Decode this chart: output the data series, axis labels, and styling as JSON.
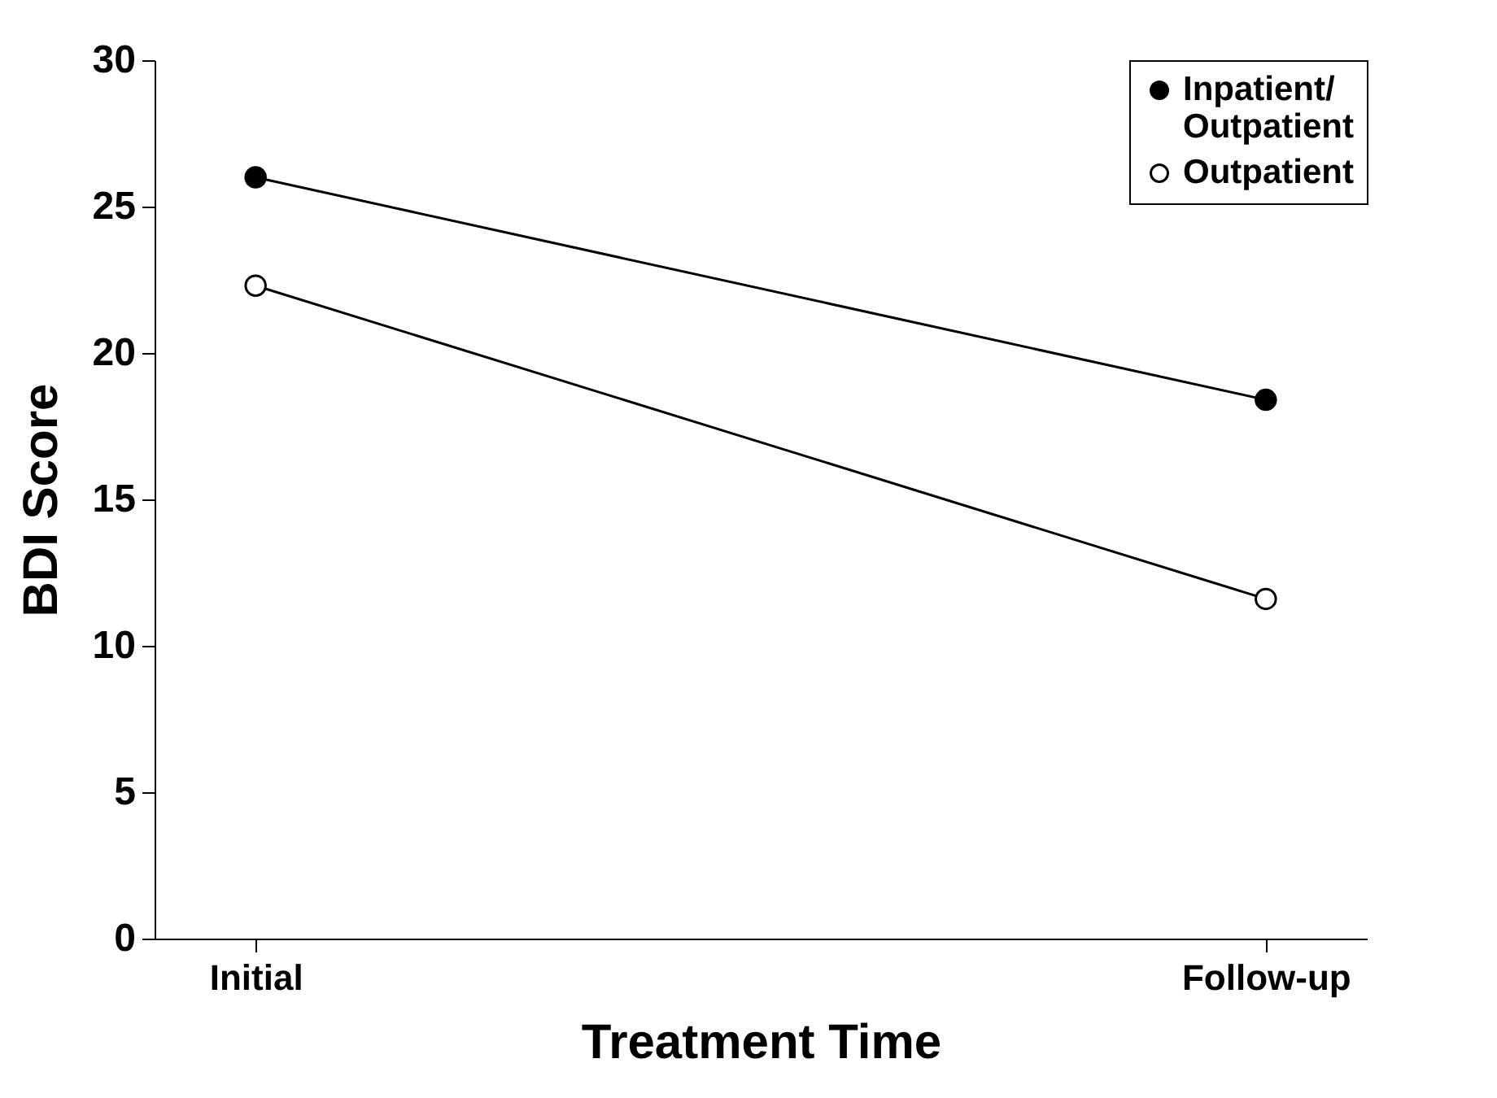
{
  "chart_data": {
    "type": "line",
    "xlabel": "Treatment Time",
    "ylabel": "BDI Score",
    "categories": [
      "Initial",
      "Follow-up"
    ],
    "series": [
      {
        "name": "Inpatient/Outpatient",
        "color": "#000000",
        "values": [
          26.0,
          18.4
        ]
      },
      {
        "name": "Outpatient",
        "color": "#000000",
        "values": [
          22.3,
          11.6
        ]
      }
    ],
    "ylim": [
      0,
      30
    ],
    "yticks": [
      0,
      5,
      10,
      15,
      20,
      25,
      30
    ],
    "grid": false,
    "legend": "top right",
    "marker": "circle",
    "line_style": "solid"
  }
}
